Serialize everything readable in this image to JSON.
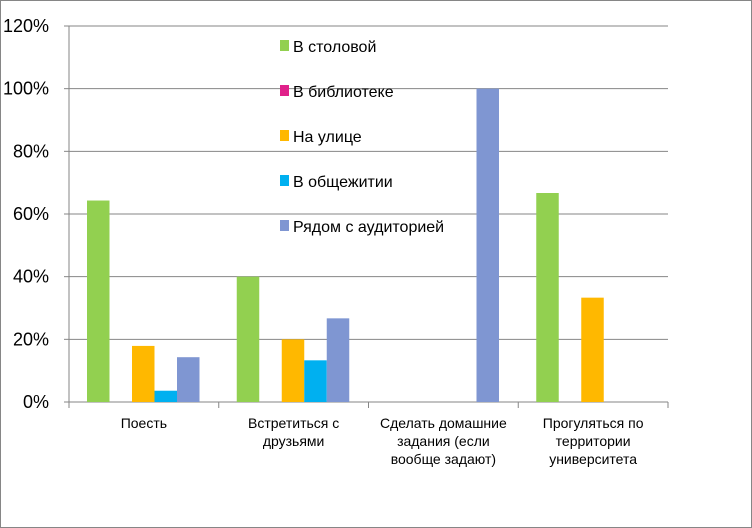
{
  "chart_data": {
    "type": "bar",
    "categories": [
      [
        "Поесть"
      ],
      [
        "Встретиться с",
        "друзьями"
      ],
      [
        "Сделать домашние",
        "задания (если",
        "вообще задают)"
      ],
      [
        "Прогуляться по",
        "территории",
        "университета"
      ]
    ],
    "series": [
      {
        "name": "В столовой",
        "color": "#92D050",
        "values": [
          0.643,
          0.4,
          0,
          0.667
        ]
      },
      {
        "name": "В библиотеке",
        "color": "#E0218A",
        "values": [
          0,
          0,
          0,
          0
        ]
      },
      {
        "name": "На улице",
        "color": "#FFB800",
        "values": [
          0.179,
          0.2,
          0,
          0.333
        ]
      },
      {
        "name": "В общежитии",
        "color": "#00B0F0",
        "values": [
          0.036,
          0.133,
          0,
          0
        ]
      },
      {
        "name": "Рядом с аудиторией",
        "color": "#7F96D2",
        "values": [
          0.143,
          0.267,
          1.0,
          0
        ]
      }
    ],
    "ylim": [
      0,
      1.2
    ],
    "yticks": [
      {
        "value": 0,
        "label": "0%"
      },
      {
        "value": 0.2,
        "label": "20%"
      },
      {
        "value": 0.4,
        "label": "40%"
      },
      {
        "value": 0.6,
        "label": "60%"
      },
      {
        "value": 0.8,
        "label": "80%"
      },
      {
        "value": 1.0,
        "label": "100%"
      },
      {
        "value": 1.2,
        "label": "120%"
      }
    ],
    "grid": true,
    "legend_position": "top-center"
  }
}
